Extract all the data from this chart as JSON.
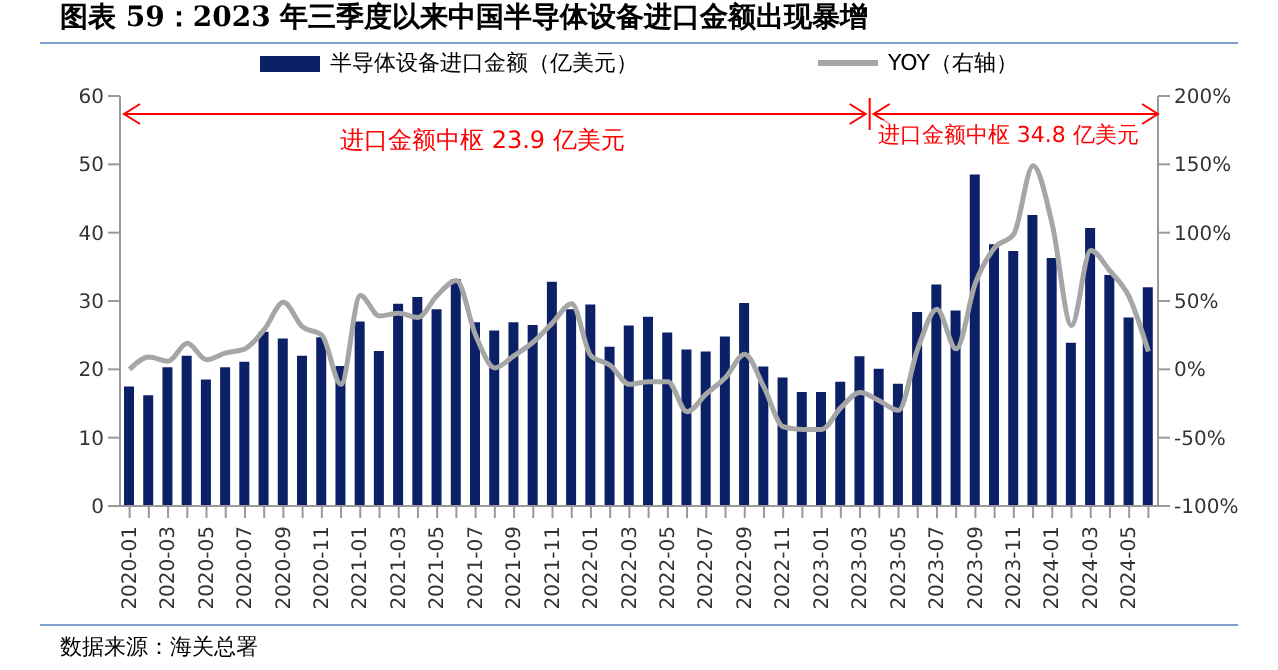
{
  "chart_data": {
    "type": "bar",
    "title": "图表 59：2023 年三季度以来中国半导体设备进口金额出现暴增",
    "categories": [
      "2020-01",
      null,
      "2020-03",
      null,
      "2020-05",
      null,
      "2020-07",
      null,
      "2020-09",
      null,
      "2020-11",
      null,
      "2021-01",
      null,
      "2021-03",
      null,
      "2021-05",
      null,
      "2021-07",
      null,
      "2021-09",
      null,
      "2021-11",
      null,
      "2022-01",
      null,
      "2022-03",
      null,
      "2022-05",
      null,
      "2022-07",
      null,
      "2022-09",
      null,
      "2022-11",
      null,
      "2023-01",
      null,
      "2023-03",
      null,
      "2023-05",
      null,
      "2023-07",
      null,
      "2023-09",
      null,
      "2023-11",
      null,
      "2024-01",
      null,
      "2024-03",
      null,
      "2024-05",
      null
    ],
    "series": [
      {
        "name": "半导体设备进口金额（亿美元）",
        "color": "#0c2068",
        "values": [
          17.5,
          16.2,
          20.3,
          22,
          18.5,
          20.3,
          21.1,
          25.5,
          24.5,
          22,
          24.7,
          20.5,
          27,
          22.7,
          29.6,
          30.6,
          28.8,
          33.2,
          26.9,
          25.7,
          26.9,
          26.5,
          32.8,
          28.8,
          29.5,
          23.3,
          26.4,
          27.7,
          25.4,
          22.9,
          22.6,
          24.8,
          29.7,
          20.4,
          18.8,
          16.7,
          16.7,
          18.2,
          21.9,
          20.1,
          17.9,
          28.4,
          32.4,
          28.6,
          48.5,
          38.3,
          37.3,
          42.6,
          36.3,
          23.9,
          40.7,
          33.8,
          27.6,
          32
        ]
      },
      {
        "name": "YOY（右轴）",
        "type": "line",
        "axis": "y2",
        "color": "#a6a6a6",
        "values": [
          0,
          9,
          6,
          19,
          7,
          12,
          15,
          29,
          49,
          31,
          25,
          -11,
          54,
          39,
          41,
          38,
          54,
          65,
          25,
          1,
          10,
          20,
          34,
          48,
          10,
          3,
          -11,
          -9,
          -9,
          -31,
          -18,
          -6,
          11,
          -13,
          -42,
          -44,
          -44,
          -28,
          -17,
          -23,
          -30,
          15,
          44,
          15,
          63,
          89,
          99,
          149,
          106,
          32,
          87,
          72,
          53,
          13
        ]
      }
    ],
    "ylim": [
      0,
      60
    ],
    "yticks": [
      0,
      10,
      20,
      30,
      40,
      50,
      60
    ],
    "y2lim": [
      -100,
      200
    ],
    "y2ticks": [
      {
        "value": -100,
        "label": "-100%"
      },
      {
        "value": -50,
        "label": "-50%"
      },
      {
        "value": 0,
        "label": "0%"
      },
      {
        "value": 50,
        "label": "50%"
      },
      {
        "value": 100,
        "label": "100%"
      },
      {
        "value": 150,
        "label": "150%"
      },
      {
        "value": 200,
        "label": "200%"
      }
    ],
    "legend": "top",
    "marker": "none",
    "line_style": "solid",
    "annotations": [
      "进口金额中枢 23.9 亿美元",
      "进口金额中枢 34.8 亿美元",
      "数据来源：海关总署"
    ]
  }
}
